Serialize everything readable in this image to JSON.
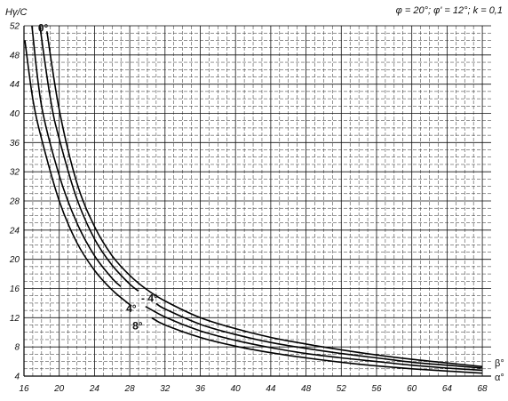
{
  "chart_data": {
    "type": "line",
    "title": "φ = 20°; φ' = 12°; k = 0,1",
    "ylabel": "Hγ/C",
    "xlabel_upper": "β°",
    "xlabel_lower": "α°",
    "xlim": [
      16,
      69
    ],
    "ylim": [
      4,
      52
    ],
    "xticks": [
      16,
      20,
      24,
      28,
      32,
      36,
      40,
      44,
      48,
      52,
      56,
      60,
      64,
      68
    ],
    "yticks": [
      4,
      8,
      12,
      16,
      20,
      24,
      28,
      32,
      36,
      40,
      44,
      48,
      52
    ],
    "series": [
      {
        "name": "0°",
        "label_text": "0°",
        "x": [
          18.5,
          20,
          22,
          24,
          26,
          28,
          30,
          32,
          36,
          40,
          44,
          48,
          52,
          56,
          60,
          64,
          68
        ],
        "y": [
          52,
          40.5,
          30.5,
          24.5,
          20.5,
          17.8,
          15.8,
          14.3,
          12.0,
          10.5,
          9.3,
          8.4,
          7.6,
          6.9,
          6.3,
          5.8,
          5.3
        ]
      },
      {
        "name": "-4°",
        "label_text": "- 4°",
        "x": [
          17.8,
          19,
          20,
          22,
          24,
          26,
          28,
          30,
          32,
          36,
          40,
          44,
          48,
          52,
          56,
          60,
          64,
          68
        ],
        "y": [
          52,
          42,
          36.5,
          28.3,
          22.8,
          19.2,
          16.6,
          14.7,
          13.2,
          11.1,
          9.7,
          8.6,
          7.8,
          7.1,
          6.5,
          5.9,
          5.5,
          5.1
        ]
      },
      {
        "name": "4°",
        "label_text": "4°",
        "x": [
          16.9,
          18,
          20,
          22,
          24,
          26,
          28,
          30,
          32,
          36,
          40,
          44,
          48,
          52,
          56,
          60,
          64,
          68
        ],
        "y": [
          52,
          41,
          31.5,
          25.0,
          20.5,
          17.4,
          15.1,
          13.4,
          12.1,
          10.2,
          8.9,
          7.9,
          7.1,
          6.5,
          6.0,
          5.5,
          5.1,
          4.8
        ]
      },
      {
        "name": "8°",
        "label_text": "8°",
        "x": [
          16.1,
          17,
          18,
          20,
          22,
          24,
          26,
          28,
          30,
          32,
          36,
          40,
          44,
          48,
          52,
          56,
          60,
          64,
          68
        ],
        "y": [
          50,
          42,
          36.5,
          28.0,
          22.3,
          18.5,
          15.8,
          13.8,
          12.3,
          11.0,
          9.3,
          8.1,
          7.2,
          6.5,
          5.9,
          5.4,
          5.0,
          4.7,
          4.4
        ]
      }
    ]
  }
}
